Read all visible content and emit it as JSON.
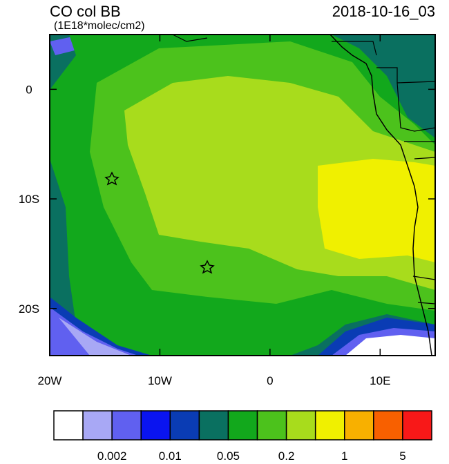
{
  "title": "CO col BB",
  "units": "(1E18*molec/cm2)",
  "timestamp": "2018-10-16_03",
  "map": {
    "lonlim": [
      -20,
      15
    ],
    "latlim": [
      -24.3,
      5
    ],
    "lon_ticks": [
      {
        "value": -20,
        "label": "20W"
      },
      {
        "value": -10,
        "label": "10W"
      },
      0,
      {
        "value": 10,
        "label": "10E"
      }
    ],
    "lat_ticks": [
      0,
      {
        "value": -10,
        "label": "10S"
      },
      {
        "value": -20,
        "label": "20S"
      }
    ]
  },
  "colorbar": {
    "colors": [
      "#ffffff",
      "#a8a8f5",
      "#6060f0",
      "#0a14f0",
      "#0a3cb4",
      "#0a7060",
      "#12a81c",
      "#4cc21c",
      "#a8dc1c",
      "#f0f000",
      "#f8b000",
      "#f86000",
      "#f81818"
    ],
    "labels": [
      "0.002",
      "0.01",
      "0.05",
      "0.2",
      "1",
      "5"
    ]
  }
}
